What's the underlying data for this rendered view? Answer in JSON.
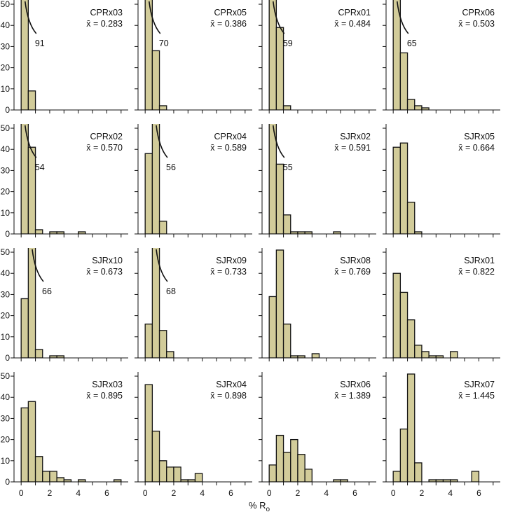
{
  "xlabel_main": "% R",
  "xlabel_sub": "o",
  "mean_prefix": "x̄ =",
  "chart_data": {
    "type": "bar",
    "xlabel": "% Rₒ",
    "xlim": [
      -0.5,
      7.5
    ],
    "ylim": [
      0,
      52
    ],
    "xticks": [
      0,
      2,
      4,
      6
    ],
    "yticks": [
      0,
      10,
      20,
      30,
      40,
      50
    ],
    "bin_edges": [
      0,
      0.5,
      1,
      1.5,
      2,
      2.5,
      3,
      3.5,
      4,
      4.5,
      5,
      5.5,
      6,
      6.5,
      7
    ],
    "bar_fill": "#d2cc9a",
    "panels": [
      {
        "label": "CPRx03",
        "mean": "0.283",
        "values": [
          91,
          9
        ],
        "off_scale": 91,
        "off_scale_bin": 0
      },
      {
        "label": "CPRx05",
        "mean": "0.386",
        "values": [
          70,
          28,
          2
        ],
        "off_scale": 70,
        "off_scale_bin": 0
      },
      {
        "label": "CPRx01",
        "mean": "0.484",
        "values": [
          59,
          39,
          2
        ],
        "off_scale": 59,
        "off_scale_bin": 0
      },
      {
        "label": "CPRx06",
        "mean": "0.503",
        "values": [
          65,
          27,
          5,
          2,
          1
        ],
        "off_scale": 65,
        "off_scale_bin": 0
      },
      {
        "label": "CPRx02",
        "mean": "0.570",
        "values": [
          54,
          41,
          2,
          0,
          1,
          1,
          0,
          0,
          1
        ],
        "off_scale": 54,
        "off_scale_bin": 0
      },
      {
        "label": "CPRx04",
        "mean": "0.589",
        "values": [
          38,
          56,
          6
        ],
        "off_scale": 56,
        "off_scale_bin": 1
      },
      {
        "label": "SJRx02",
        "mean": "0.591",
        "values": [
          55,
          33,
          9,
          1,
          1,
          1,
          0,
          0,
          0,
          1
        ],
        "off_scale": 55,
        "off_scale_bin": 0
      },
      {
        "label": "SJRx05",
        "mean": "0.664",
        "values": [
          41,
          43,
          15,
          1
        ]
      },
      {
        "label": "SJRx10",
        "mean": "0.673",
        "values": [
          28,
          66,
          4,
          0,
          1,
          1
        ],
        "off_scale": 66,
        "off_scale_bin": 1
      },
      {
        "label": "SJRx09",
        "mean": "0.733",
        "values": [
          16,
          68,
          13,
          3
        ],
        "off_scale": 68,
        "off_scale_bin": 1
      },
      {
        "label": "SJRx08",
        "mean": "0.769",
        "values": [
          29,
          51,
          16,
          1,
          1,
          0,
          2
        ]
      },
      {
        "label": "SJRx01",
        "mean": "0.822",
        "values": [
          40,
          31,
          18,
          6,
          3,
          1,
          1,
          0,
          3
        ]
      },
      {
        "label": "SJRx03",
        "mean": "0.895",
        "values": [
          35,
          38,
          12,
          5,
          5,
          2,
          1,
          0,
          1,
          0,
          0,
          0,
          0,
          1
        ]
      },
      {
        "label": "SJRx04",
        "mean": "0.898",
        "values": [
          46,
          24,
          10,
          7,
          7,
          1,
          1,
          4
        ]
      },
      {
        "label": "SJRx06",
        "mean": "1.389",
        "values": [
          8,
          22,
          14,
          20,
          13,
          6,
          0,
          0,
          0,
          1,
          1
        ]
      },
      {
        "label": "SJRx07",
        "mean": "1.445",
        "values": [
          5,
          25,
          51,
          9,
          0,
          1,
          1,
          1,
          1,
          0,
          0,
          5
        ]
      }
    ]
  }
}
